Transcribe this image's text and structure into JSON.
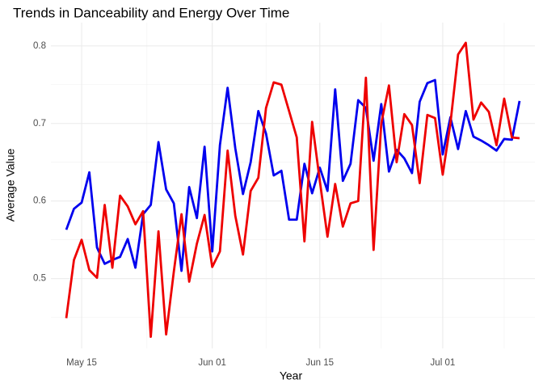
{
  "chart_data": {
    "type": "line",
    "title": "Trends in Danceability and Energy Over Time",
    "xlabel": "Year",
    "ylabel": "Average Value",
    "x": [
      "May 13",
      "May 14",
      "May 15",
      "May 16",
      "May 17",
      "May 18",
      "May 19",
      "May 20",
      "May 21",
      "May 22",
      "May 23",
      "May 24",
      "May 25",
      "May 26",
      "May 27",
      "May 28",
      "May 29",
      "May 30",
      "May 31",
      "Jun 01",
      "Jun 02",
      "Jun 03",
      "Jun 04",
      "Jun 05",
      "Jun 06",
      "Jun 07",
      "Jun 08",
      "Jun 09",
      "Jun 10",
      "Jun 11",
      "Jun 12",
      "Jun 13",
      "Jun 14",
      "Jun 15",
      "Jun 16",
      "Jun 17",
      "Jun 18",
      "Jun 19",
      "Jun 20",
      "Jun 21",
      "Jun 22",
      "Jun 23",
      "Jun 24",
      "Jun 25",
      "Jun 26",
      "Jun 27",
      "Jun 28",
      "Jun 29",
      "Jun 30",
      "Jul 01",
      "Jul 02",
      "Jul 03",
      "Jul 04",
      "Jul 05",
      "Jul 06",
      "Jul 07",
      "Jul 08",
      "Jul 09",
      "Jul 10",
      "Jul 11"
    ],
    "series": [
      {
        "color": "#0000ee",
        "values": [
          0.563,
          0.59,
          0.598,
          0.637,
          0.54,
          0.519,
          0.524,
          0.528,
          0.551,
          0.514,
          0.583,
          0.595,
          0.676,
          0.615,
          0.597,
          0.51,
          0.618,
          0.578,
          0.67,
          0.535,
          0.672,
          0.746,
          0.668,
          0.609,
          0.65,
          0.716,
          0.687,
          0.633,
          0.639,
          0.576,
          0.576,
          0.648,
          0.61,
          0.643,
          0.613,
          0.744,
          0.626,
          0.648,
          0.73,
          0.72,
          0.652,
          0.725,
          0.638,
          0.666,
          0.655,
          0.636,
          0.728,
          0.752,
          0.756,
          0.66,
          0.708,
          0.667,
          0.716,
          0.683,
          0.678,
          0.672,
          0.665,
          0.68,
          0.679,
          0.729
        ]
      },
      {
        "color": "#ee0000",
        "values": [
          0.449,
          0.524,
          0.55,
          0.511,
          0.501,
          0.595,
          0.514,
          0.607,
          0.593,
          0.57,
          0.587,
          0.425,
          0.561,
          0.428,
          0.509,
          0.583,
          0.496,
          0.545,
          0.582,
          0.515,
          0.535,
          0.665,
          0.581,
          0.531,
          0.613,
          0.63,
          0.72,
          0.753,
          0.75,
          0.716,
          0.682,
          0.548,
          0.702,
          0.626,
          0.554,
          0.622,
          0.567,
          0.597,
          0.6,
          0.759,
          0.537,
          0.7,
          0.749,
          0.65,
          0.712,
          0.698,
          0.623,
          0.711,
          0.707,
          0.634,
          0.7,
          0.789,
          0.804,
          0.705,
          0.727,
          0.715,
          0.672,
          0.732,
          0.682,
          0.681
        ]
      }
    ],
    "xlim": [
      "May 11",
      "Jul 13"
    ],
    "xticks": [
      "May 15",
      "Jun 01",
      "Jun 15",
      "Jul 01"
    ],
    "ylim": [
      0.41,
      0.83
    ],
    "yticks": [
      0.5,
      0.6,
      0.7,
      0.8
    ],
    "grid": true
  }
}
